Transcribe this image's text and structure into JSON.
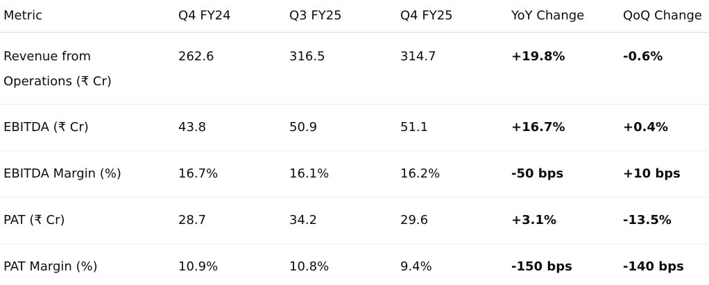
{
  "table": {
    "headers": [
      "Metric",
      "Q4 FY24",
      "Q3 FY25",
      "Q4 FY25",
      "YoY Change",
      "QoQ Change"
    ],
    "rows": [
      [
        "Revenue from Operations (₹ Cr)",
        "262.6",
        "316.5",
        "314.7",
        "+19.8%",
        "-0.6%"
      ],
      [
        "EBITDA (₹ Cr)",
        "43.8",
        "50.9",
        "51.1",
        "+16.7%",
        "+0.4%"
      ],
      [
        "EBITDA Margin (%)",
        "16.7%",
        "16.1%",
        "16.2%",
        "-50 bps",
        "+10 bps"
      ],
      [
        "PAT (₹ Cr)",
        "28.7",
        "34.2",
        "29.6",
        "+3.1%",
        "-13.5%"
      ],
      [
        "PAT Margin (%)",
        "10.9%",
        "10.8%",
        "9.4%",
        "-150 bps",
        "-140 bps"
      ]
    ]
  }
}
